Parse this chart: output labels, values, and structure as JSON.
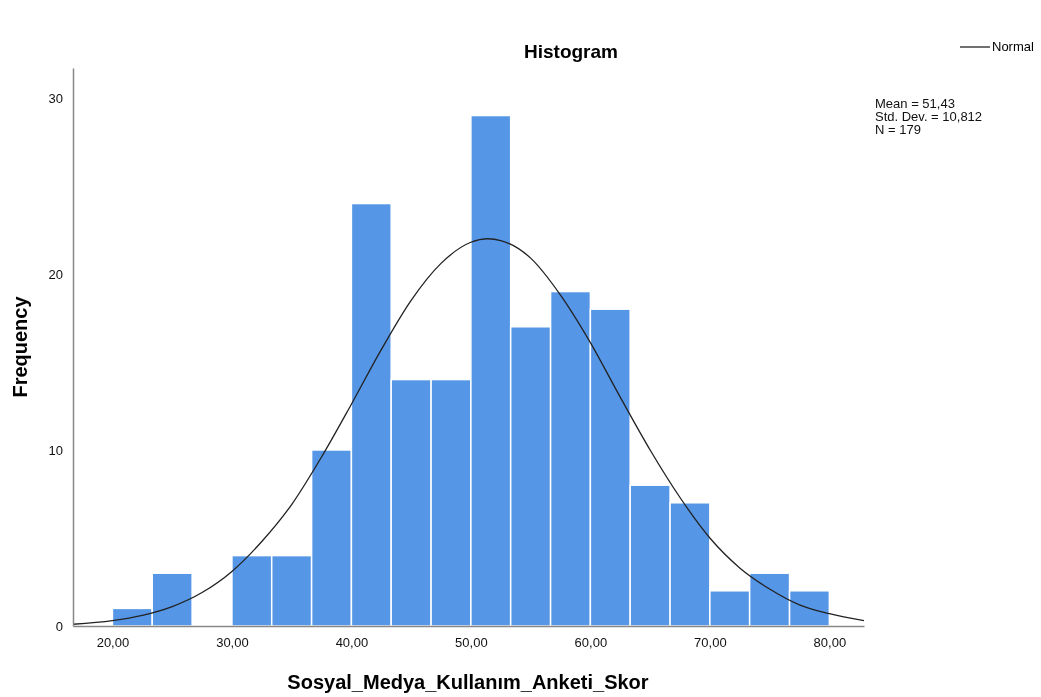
{
  "chart_data": {
    "type": "histogram",
    "title": "Histogram",
    "xlabel": "Sosyal_Medya_Kullanım_Anketi_Skor",
    "ylabel": "Frequency",
    "bins": [
      20,
      23.33,
      26.67,
      30,
      33.33,
      36.67,
      40,
      43.33,
      46.67,
      50,
      53.33,
      56.67,
      60,
      63.33,
      66.67,
      70,
      73.33,
      76.67,
      80
    ],
    "values": [
      1,
      3,
      0,
      4,
      4,
      10,
      24,
      14,
      14,
      29,
      17,
      19,
      18,
      8,
      7,
      2,
      3,
      2
    ],
    "color": "#5596e6",
    "series": [
      {
        "type": "line",
        "name": "Normal",
        "color": "#222222",
        "x": [
          16.7,
          20,
          22.5,
          25,
          27.5,
          30,
          32.5,
          35,
          37.5,
          40,
          42.5,
          45,
          47.5,
          50,
          51.43,
          52.5,
          55,
          57.5,
          60,
          62.5,
          65,
          67.5,
          70,
          72.5,
          75,
          77.5,
          80,
          82.9
        ],
        "values": [
          0.1,
          0.3,
          0.6,
          1.1,
          1.9,
          3.1,
          4.8,
          6.9,
          9.6,
          12.6,
          15.7,
          18.5,
          20.6,
          21.8,
          22.0,
          21.9,
          20.9,
          18.8,
          16.1,
          13.0,
          10.0,
          7.3,
          5.0,
          3.3,
          2.1,
          1.2,
          0.7,
          0.3
        ]
      }
    ],
    "xlim": [
      16.7,
      82.9
    ],
    "ylim": [
      0,
      31.7
    ],
    "xticks": [
      {
        "value": 20,
        "label": "20,00"
      },
      {
        "value": 30,
        "label": "30,00"
      },
      {
        "value": 40,
        "label": "40,00"
      },
      {
        "value": 50,
        "label": "50,00"
      },
      {
        "value": 60,
        "label": "60,00"
      },
      {
        "value": 70,
        "label": "70,00"
      },
      {
        "value": 80,
        "label": "80,00"
      }
    ],
    "yticks": [
      0,
      10,
      20,
      30
    ],
    "legend": "top right",
    "annotations": [
      "Mean = 51,43",
      "Std. Dev. = 10,812",
      "N = 179"
    ]
  }
}
